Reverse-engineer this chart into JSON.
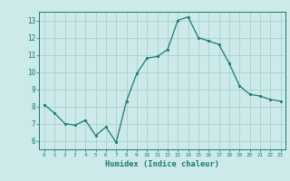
{
  "x": [
    0,
    1,
    2,
    3,
    4,
    5,
    6,
    7,
    8,
    9,
    10,
    11,
    12,
    13,
    14,
    15,
    16,
    17,
    18,
    19,
    20,
    21,
    22,
    23
  ],
  "y": [
    8.1,
    7.6,
    7.0,
    6.9,
    7.2,
    6.3,
    6.8,
    5.9,
    8.3,
    9.9,
    10.8,
    10.9,
    11.3,
    13.0,
    13.2,
    12.0,
    11.8,
    11.6,
    10.5,
    9.2,
    8.7,
    8.6,
    8.4,
    8.3
  ],
  "xlim": [
    -0.5,
    23.5
  ],
  "ylim": [
    5.5,
    13.5
  ],
  "yticks": [
    6,
    7,
    8,
    9,
    10,
    11,
    12,
    13
  ],
  "xticks": [
    0,
    1,
    2,
    3,
    4,
    5,
    6,
    7,
    8,
    9,
    10,
    11,
    12,
    13,
    14,
    15,
    16,
    17,
    18,
    19,
    20,
    21,
    22,
    23
  ],
  "xlabel": "Humidex (Indice chaleur)",
  "line_color": "#1a7a6e",
  "marker_color": "#1a7a6e",
  "bg_color": "#cceaea",
  "grid_color": "#aacfcf",
  "axis_color": "#1a7a6e",
  "tick_color": "#1a7a6e",
  "label_color": "#1a7a6e"
}
